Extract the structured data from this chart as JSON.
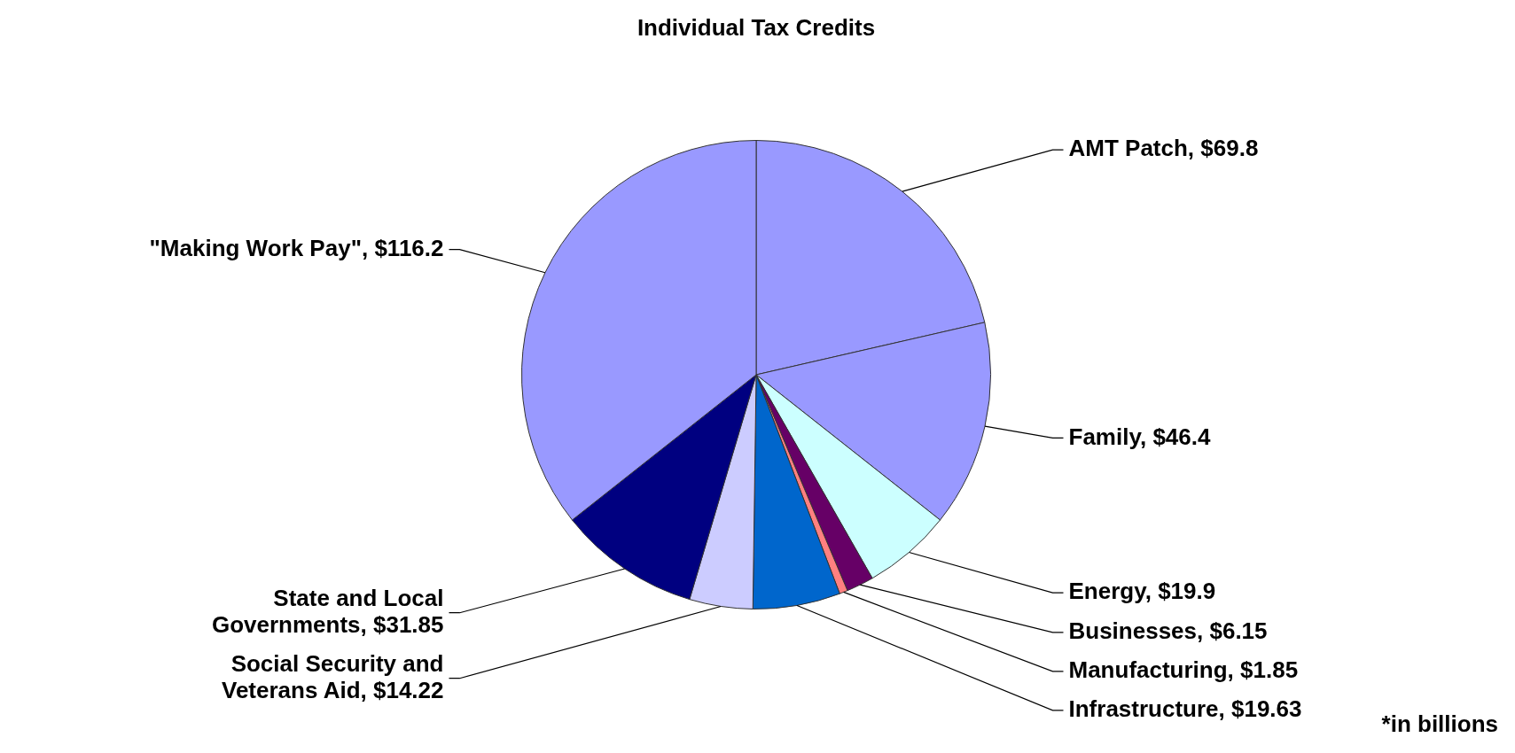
{
  "chart_data": {
    "type": "pie",
    "categories": [
      "AMT Patch",
      "Family",
      "Energy",
      "Businesses",
      "Manufacturing",
      "Infrastructure",
      "Social Security and Veterans Aid",
      "State and Local Governments",
      "\"Making Work Pay\""
    ],
    "values": [
      69.8,
      46.4,
      19.9,
      6.15,
      1.85,
      19.63,
      14.22,
      31.85,
      116.2
    ],
    "value_labels": [
      "$69.8",
      "$46.4",
      "$19.9",
      "$6.15",
      "$1.85",
      "$19.63",
      "$14.22",
      "$31.85",
      "$116.2"
    ],
    "colors": [
      "#9999ff",
      "#9999ff",
      "#ccffff",
      "#660066",
      "#ff8080",
      "#0066cc",
      "#ccccff",
      "#000080",
      "#9999ff"
    ],
    "annotations": [
      "Individual Tax Credits",
      "*in billions"
    ],
    "legend": false
  }
}
